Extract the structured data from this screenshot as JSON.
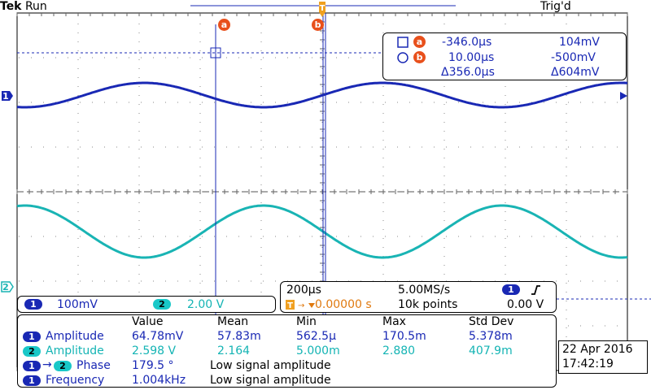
{
  "header": {
    "brand": "Tek",
    "status": "Run",
    "trigger_status": "Trig'd"
  },
  "cursors": {
    "a_label": "a",
    "b_label": "b",
    "a_time": "-346.0µs",
    "a_volt": "104mV",
    "b_time": "10.00µs",
    "b_volt": "-500mV",
    "delta_time": "Δ356.0µs",
    "delta_volt": "Δ604mV"
  },
  "channels": {
    "ch1_marker": "1",
    "ch2_marker": "2",
    "ch1_scale": "100mV",
    "ch2_scale": "2.00 V",
    "ch1_color": "#1928b4",
    "ch2_color": "#19c8c8"
  },
  "timebase": {
    "time_div": "200µs",
    "sample_rate": "5.00MS/s",
    "position": "0.00000 s",
    "record_length": "10k points",
    "trigger_source": "1",
    "trigger_level": "0.00 V",
    "trigger_slope_icon": "rising-edge-icon"
  },
  "measurements": {
    "headers": [
      "Value",
      "Mean",
      "Min",
      "Max",
      "Std Dev"
    ],
    "rows": [
      {
        "ch": "1",
        "name": "Amplitude",
        "value": "64.78mV",
        "mean": "57.83m",
        "min": "562.5µ",
        "max": "170.5m",
        "std": "5.378m"
      },
      {
        "ch": "2",
        "name": "Amplitude",
        "value": "2.598 V",
        "mean": "2.164",
        "min": "5.000m",
        "max": "2.880",
        "std": "407.9m"
      },
      {
        "ch": "1",
        "ch2": "2",
        "name": "Phase",
        "value": "179.5 °",
        "note": "Low signal amplitude"
      },
      {
        "ch": "1",
        "name": "Frequency",
        "value": "1.004kHz",
        "note": "Low signal amplitude"
      }
    ]
  },
  "datetime": {
    "date": "22 Apr  2016",
    "time": "17:42:19"
  }
}
